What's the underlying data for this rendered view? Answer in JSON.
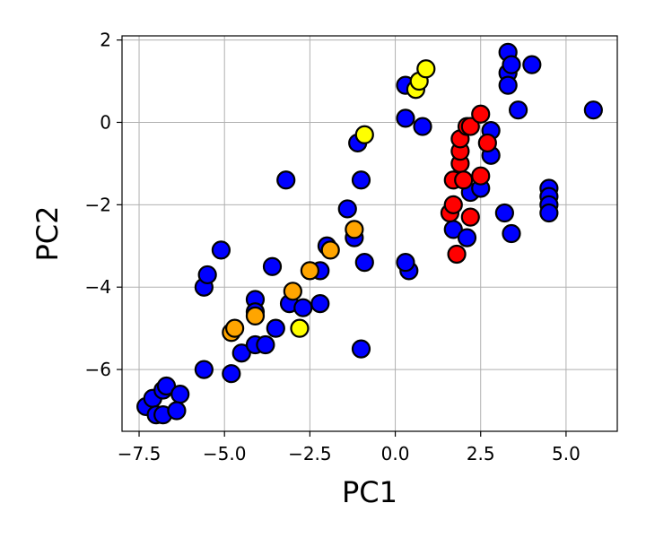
{
  "chart_data": {
    "type": "scatter",
    "xlabel": "PC1",
    "ylabel": "PC2",
    "xlim": [
      -8.0,
      6.5
    ],
    "ylim": [
      -7.5,
      2.1
    ],
    "x_ticks": [
      -7.5,
      -5.0,
      -2.5,
      0.0,
      2.5,
      5.0
    ],
    "x_tick_labels": [
      "−7.5",
      "−5.0",
      "−2.5",
      "0.0",
      "2.5",
      "5.0"
    ],
    "y_ticks": [
      -6,
      -4,
      -2,
      0,
      2
    ],
    "y_tick_labels": [
      "−6",
      "−4",
      "−2",
      "0",
      "2"
    ],
    "grid": true,
    "series": [
      {
        "color": "#0000ff",
        "points": [
          [
            -7.3,
            -6.9
          ],
          [
            -7.1,
            -6.7
          ],
          [
            -7.0,
            -7.1
          ],
          [
            -6.8,
            -7.1
          ],
          [
            -6.8,
            -6.5
          ],
          [
            -6.7,
            -6.4
          ],
          [
            -6.3,
            -6.6
          ],
          [
            -6.4,
            -7.0
          ],
          [
            -5.6,
            -6.0
          ],
          [
            -4.8,
            -6.1
          ],
          [
            -5.6,
            -4.0
          ],
          [
            -5.5,
            -3.7
          ],
          [
            -5.1,
            -3.1
          ],
          [
            -4.5,
            -5.6
          ],
          [
            -4.1,
            -5.4
          ],
          [
            -3.8,
            -5.4
          ],
          [
            -3.5,
            -5.0
          ],
          [
            -4.1,
            -4.3
          ],
          [
            -4.1,
            -4.6
          ],
          [
            -3.6,
            -3.5
          ],
          [
            -3.2,
            -1.4
          ],
          [
            -3.1,
            -4.4
          ],
          [
            -2.7,
            -4.5
          ],
          [
            -2.2,
            -4.4
          ],
          [
            -2.2,
            -3.6
          ],
          [
            -2.0,
            -3.0
          ],
          [
            -1.4,
            -2.1
          ],
          [
            -1.2,
            -2.8
          ],
          [
            -1.1,
            -0.5
          ],
          [
            -1.0,
            -1.4
          ],
          [
            -0.9,
            -3.4
          ],
          [
            -1.0,
            -5.5
          ],
          [
            0.3,
            0.9
          ],
          [
            0.3,
            0.1
          ],
          [
            0.4,
            -3.6
          ],
          [
            0.3,
            -3.4
          ],
          [
            0.8,
            -0.1
          ],
          [
            1.7,
            -2.6
          ],
          [
            2.1,
            -2.8
          ],
          [
            2.2,
            -1.7
          ],
          [
            2.5,
            -1.6
          ],
          [
            2.8,
            -0.8
          ],
          [
            2.8,
            -0.2
          ],
          [
            3.2,
            -2.2
          ],
          [
            3.3,
            1.2
          ],
          [
            3.3,
            1.7
          ],
          [
            3.4,
            1.4
          ],
          [
            3.3,
            0.9
          ],
          [
            3.4,
            -2.7
          ],
          [
            3.6,
            0.3
          ],
          [
            4.0,
            1.4
          ],
          [
            4.5,
            -1.6
          ],
          [
            4.5,
            -1.8
          ],
          [
            4.5,
            -2.0
          ],
          [
            4.5,
            -2.2
          ],
          [
            5.8,
            0.3
          ]
        ]
      },
      {
        "color": "#ffa500",
        "points": [
          [
            -4.8,
            -5.1
          ],
          [
            -4.7,
            -5.0
          ],
          [
            -4.1,
            -4.7
          ],
          [
            -3.0,
            -4.1
          ],
          [
            -2.5,
            -3.6
          ],
          [
            -1.9,
            -3.1
          ],
          [
            -1.2,
            -2.6
          ]
        ]
      },
      {
        "color": "#ffff00",
        "points": [
          [
            -2.8,
            -5.0
          ],
          [
            -0.9,
            -0.3
          ],
          [
            0.6,
            0.8
          ],
          [
            0.7,
            1.0
          ],
          [
            0.9,
            1.3
          ]
        ]
      },
      {
        "color": "#ff0000",
        "points": [
          [
            1.6,
            -2.2
          ],
          [
            1.7,
            -2.0
          ],
          [
            1.7,
            -1.4
          ],
          [
            1.8,
            -3.2
          ],
          [
            1.9,
            -1.0
          ],
          [
            1.9,
            -0.7
          ],
          [
            1.9,
            -0.4
          ],
          [
            2.0,
            -1.4
          ],
          [
            2.1,
            -0.1
          ],
          [
            2.2,
            -0.1
          ],
          [
            2.2,
            -2.3
          ],
          [
            2.5,
            -1.3
          ],
          [
            2.5,
            0.2
          ],
          [
            2.7,
            -0.5
          ]
        ]
      }
    ]
  }
}
